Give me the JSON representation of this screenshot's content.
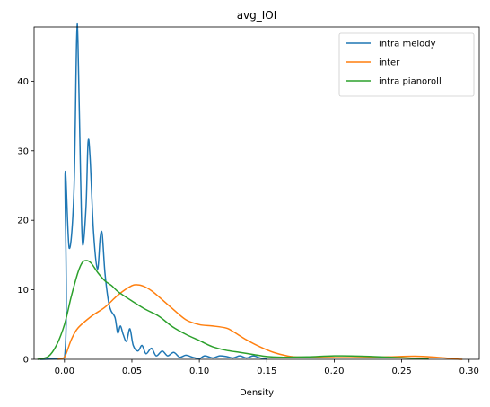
{
  "chart_data": {
    "type": "line",
    "title": "avg_IOI",
    "xlabel": "Density",
    "ylabel": "",
    "xlim": [
      -0.0225,
      0.3075
    ],
    "ylim": [
      0,
      47.8
    ],
    "xticks": [
      "0.00",
      "0.05",
      "0.10",
      "0.15",
      "0.20",
      "0.25",
      "0.30"
    ],
    "xtick_values": [
      0.0,
      0.05,
      0.1,
      0.15,
      0.2,
      0.25,
      0.3
    ],
    "yticks": [
      "0",
      "10",
      "20",
      "30",
      "40"
    ],
    "ytick_values": [
      0,
      10,
      20,
      30,
      40
    ],
    "grid": false,
    "legend_position": "top-right",
    "series": [
      {
        "name": "intra melody",
        "color": "#1f77b4",
        "points": [
          [
            -0.018,
            0
          ],
          [
            0,
            0.2
          ],
          [
            0.0005,
            26.7
          ],
          [
            0.0035,
            16.0
          ],
          [
            0.007,
            24.0
          ],
          [
            0.009,
            45.7
          ],
          [
            0.01,
            45.6
          ],
          [
            0.012,
            26.0
          ],
          [
            0.0135,
            16.5
          ],
          [
            0.016,
            22.0
          ],
          [
            0.0175,
            31.2
          ],
          [
            0.019,
            29.0
          ],
          [
            0.0215,
            18.5
          ],
          [
            0.0245,
            13.0
          ],
          [
            0.0265,
            17.5
          ],
          [
            0.028,
            18.0
          ],
          [
            0.03,
            12.5
          ],
          [
            0.0325,
            8.5
          ],
          [
            0.0345,
            7.0
          ],
          [
            0.0375,
            6.0
          ],
          [
            0.0395,
            3.8
          ],
          [
            0.0415,
            4.8
          ],
          [
            0.0435,
            3.6
          ],
          [
            0.046,
            2.6
          ],
          [
            0.0485,
            4.4
          ],
          [
            0.051,
            2.0
          ],
          [
            0.0545,
            1.2
          ],
          [
            0.0575,
            2.0
          ],
          [
            0.0605,
            0.8
          ],
          [
            0.0645,
            1.6
          ],
          [
            0.068,
            0.5
          ],
          [
            0.0725,
            1.2
          ],
          [
            0.0765,
            0.5
          ],
          [
            0.081,
            1.0
          ],
          [
            0.0855,
            0.3
          ],
          [
            0.09,
            0.6
          ],
          [
            0.095,
            0.3
          ],
          [
            0.1,
            0.1
          ],
          [
            0.104,
            0.5
          ],
          [
            0.11,
            0.2
          ],
          [
            0.115,
            0.5
          ],
          [
            0.12,
            0.4
          ],
          [
            0.125,
            0.2
          ],
          [
            0.13,
            0.5
          ],
          [
            0.135,
            0.2
          ],
          [
            0.14,
            0.5
          ],
          [
            0.145,
            0.2
          ],
          [
            0.15,
            0.05
          ]
        ]
      },
      {
        "name": "inter",
        "color": "#ff7f0e",
        "points": [
          [
            -0.005,
            0
          ],
          [
            0.0,
            0.3
          ],
          [
            0.005,
            2.8
          ],
          [
            0.01,
            4.5
          ],
          [
            0.02,
            6.2
          ],
          [
            0.03,
            7.5
          ],
          [
            0.04,
            9.3
          ],
          [
            0.05,
            10.6
          ],
          [
            0.055,
            10.7
          ],
          [
            0.06,
            10.4
          ],
          [
            0.065,
            9.8
          ],
          [
            0.07,
            9.0
          ],
          [
            0.08,
            7.3
          ],
          [
            0.09,
            5.7
          ],
          [
            0.1,
            5.0
          ],
          [
            0.11,
            4.8
          ],
          [
            0.12,
            4.5
          ],
          [
            0.125,
            4.0
          ],
          [
            0.135,
            2.8
          ],
          [
            0.145,
            1.8
          ],
          [
            0.155,
            1.0
          ],
          [
            0.165,
            0.5
          ],
          [
            0.175,
            0.3
          ],
          [
            0.2,
            0.25
          ],
          [
            0.22,
            0.25
          ],
          [
            0.24,
            0.35
          ],
          [
            0.26,
            0.45
          ],
          [
            0.275,
            0.3
          ],
          [
            0.29,
            0.05
          ],
          [
            0.295,
            0.0
          ]
        ]
      },
      {
        "name": "intra pianoroll",
        "color": "#2ca02c",
        "points": [
          [
            -0.02,
            0
          ],
          [
            -0.012,
            0.4
          ],
          [
            -0.006,
            2.0
          ],
          [
            0.0,
            5.0
          ],
          [
            0.005,
            9.0
          ],
          [
            0.01,
            12.5
          ],
          [
            0.0135,
            14.0
          ],
          [
            0.017,
            14.2
          ],
          [
            0.02,
            13.8
          ],
          [
            0.025,
            12.4
          ],
          [
            0.03,
            11.3
          ],
          [
            0.035,
            10.6
          ],
          [
            0.04,
            9.7
          ],
          [
            0.05,
            8.4
          ],
          [
            0.06,
            7.2
          ],
          [
            0.07,
            6.2
          ],
          [
            0.08,
            4.7
          ],
          [
            0.09,
            3.6
          ],
          [
            0.1,
            2.7
          ],
          [
            0.11,
            1.8
          ],
          [
            0.12,
            1.3
          ],
          [
            0.13,
            1.0
          ],
          [
            0.14,
            0.7
          ],
          [
            0.15,
            0.4
          ],
          [
            0.16,
            0.3
          ],
          [
            0.18,
            0.35
          ],
          [
            0.2,
            0.5
          ],
          [
            0.22,
            0.45
          ],
          [
            0.24,
            0.3
          ],
          [
            0.27,
            0.05
          ]
        ]
      }
    ]
  }
}
